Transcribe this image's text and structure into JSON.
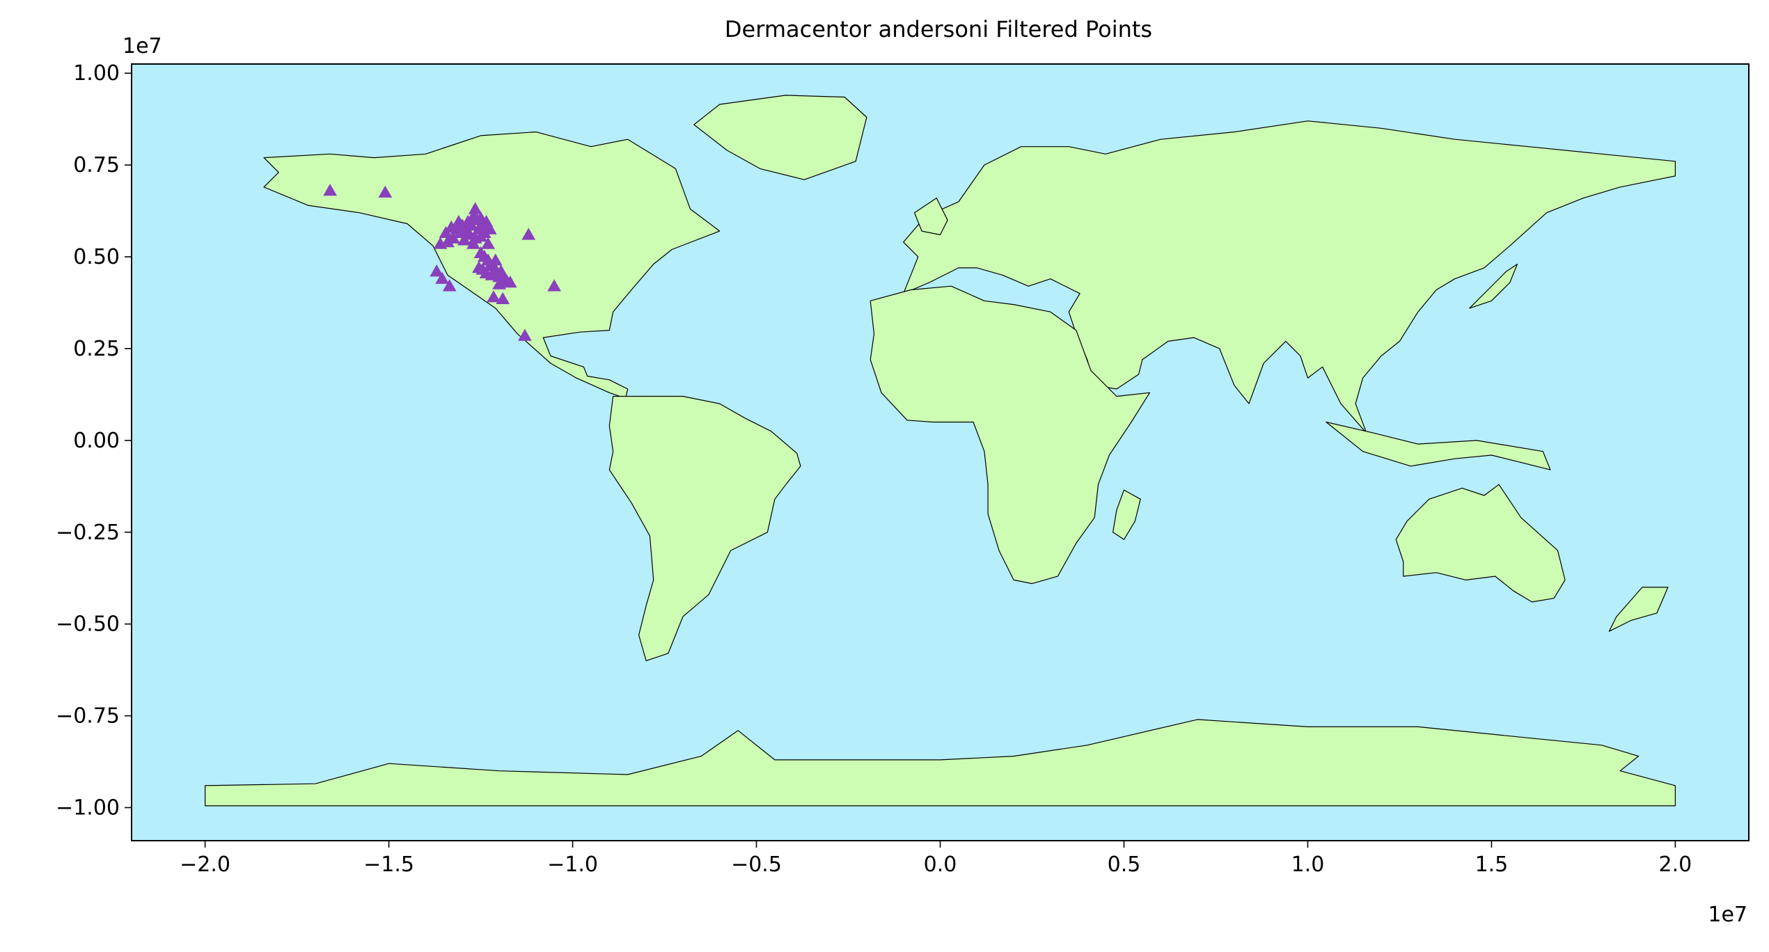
{
  "chart_data": {
    "type": "scatter",
    "title": "Dermacentor andersoni Filtered Points",
    "xlabel": "",
    "ylabel": "",
    "xlim": [
      -22000000,
      22000000
    ],
    "ylim": [
      -10900000,
      10250000
    ],
    "x_offset_label": "1e7",
    "y_offset_label": "1e7",
    "xticks": [
      {
        "value": -20000000,
        "label": "−2.0"
      },
      {
        "value": -15000000,
        "label": "−1.5"
      },
      {
        "value": -10000000,
        "label": "−1.0"
      },
      {
        "value": -5000000,
        "label": "−0.5"
      },
      {
        "value": 0,
        "label": "0.0"
      },
      {
        "value": 5000000,
        "label": "0.5"
      },
      {
        "value": 10000000,
        "label": "1.0"
      },
      {
        "value": 15000000,
        "label": "1.5"
      },
      {
        "value": 20000000,
        "label": "2.0"
      }
    ],
    "yticks": [
      {
        "value": 10000000,
        "label": "1.00"
      },
      {
        "value": 7500000,
        "label": "0.75"
      },
      {
        "value": 5000000,
        "label": "0.50"
      },
      {
        "value": 2500000,
        "label": "0.25"
      },
      {
        "value": 0,
        "label": "0.00"
      },
      {
        "value": -2500000,
        "label": "−0.25"
      },
      {
        "value": -5000000,
        "label": "−0.50"
      },
      {
        "value": -7500000,
        "label": "−0.75"
      },
      {
        "value": -10000000,
        "label": "−1.00"
      }
    ],
    "grid": false,
    "marker": "triangle",
    "colors": {
      "ocean": "#b6eefb",
      "land": "#ccfdb2",
      "border": "#000000",
      "points": "#8a3fbd"
    },
    "points": [
      [
        -16600000,
        6800000
      ],
      [
        -15100000,
        6750000
      ],
      [
        -13600000,
        5350000
      ],
      [
        -13450000,
        5650000
      ],
      [
        -13400000,
        5400000
      ],
      [
        -13300000,
        5800000
      ],
      [
        -13250000,
        5500000
      ],
      [
        -13150000,
        5750000
      ],
      [
        -13100000,
        5950000
      ],
      [
        -13050000,
        5650000
      ],
      [
        -13000000,
        5850000
      ],
      [
        -12950000,
        5450000
      ],
      [
        -12900000,
        5700000
      ],
      [
        -12850000,
        5950000
      ],
      [
        -12800000,
        5600000
      ],
      [
        -12750000,
        5850000
      ],
      [
        -12700000,
        6100000
      ],
      [
        -12650000,
        5500000
      ],
      [
        -12600000,
        6000000
      ],
      [
        -12550000,
        5750000
      ],
      [
        -12500000,
        5550000
      ],
      [
        -12450000,
        5900000
      ],
      [
        -12400000,
        5650000
      ],
      [
        -12350000,
        5950000
      ],
      [
        -12300000,
        5350000
      ],
      [
        -12250000,
        5750000
      ],
      [
        -12650000,
        6300000
      ],
      [
        -12500000,
        6050000
      ],
      [
        -12700000,
        5350000
      ],
      [
        -12500000,
        5100000
      ],
      [
        -12400000,
        5000000
      ],
      [
        -12300000,
        4900000
      ],
      [
        -12550000,
        4700000
      ],
      [
        -12450000,
        4650000
      ],
      [
        -12350000,
        4550000
      ],
      [
        -12250000,
        4750000
      ],
      [
        -12200000,
        4500000
      ],
      [
        -12100000,
        4650000
      ],
      [
        -12000000,
        4450000
      ],
      [
        -11950000,
        4600000
      ],
      [
        -11850000,
        4400000
      ],
      [
        -11800000,
        4350000
      ],
      [
        -11700000,
        4300000
      ],
      [
        -12100000,
        4900000
      ],
      [
        -12000000,
        4250000
      ],
      [
        -13700000,
        4600000
      ],
      [
        -13550000,
        4400000
      ],
      [
        -13350000,
        4200000
      ],
      [
        -12150000,
        3900000
      ],
      [
        -11900000,
        3850000
      ],
      [
        -11200000,
        5600000
      ],
      [
        -10500000,
        4200000
      ],
      [
        -11300000,
        2850000
      ]
    ]
  }
}
